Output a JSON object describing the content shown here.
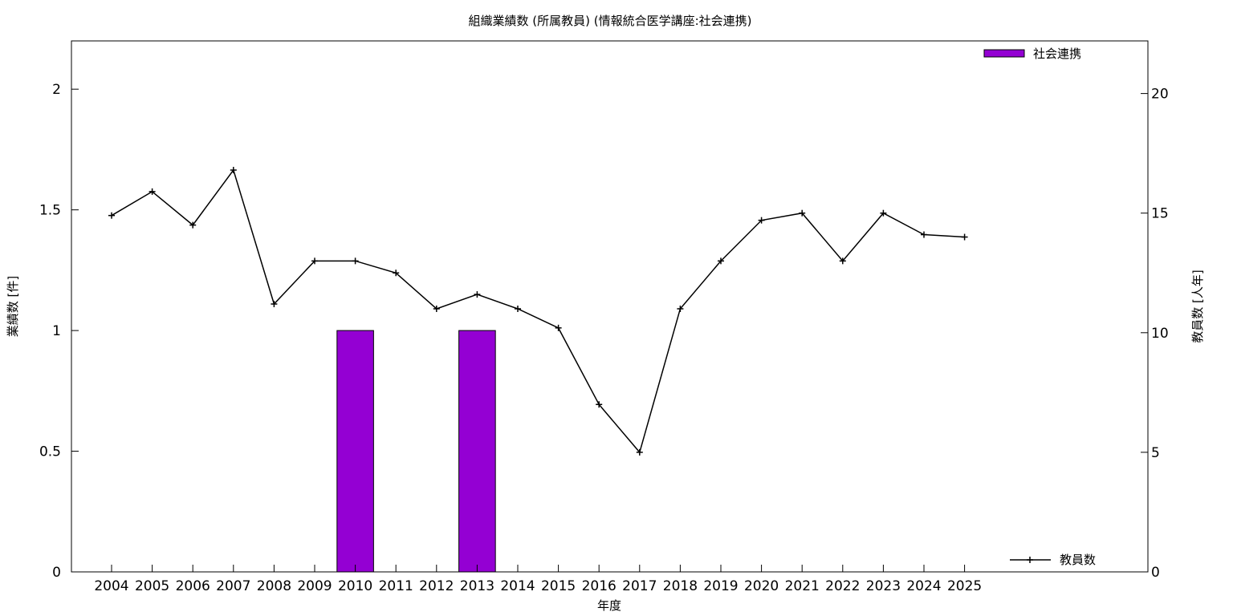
{
  "chart_data": {
    "type": "bar",
    "title": "組織業績数 (所属教員) (情報統合医学講座:社会連携)",
    "xlabel": "年度",
    "ylabel": "業績数 [件]",
    "y2label": "教員数 [人年]",
    "categories": [
      "2004",
      "2005",
      "2006",
      "2007",
      "2008",
      "2009",
      "2010",
      "2011",
      "2012",
      "2013",
      "2014",
      "2015",
      "2016",
      "2017",
      "2018",
      "2019",
      "2020",
      "2021",
      "2022",
      "2023",
      "2024",
      "2025"
    ],
    "ylim": [
      0,
      2.2
    ],
    "y2lim": [
      0,
      22.2
    ],
    "yticks": [
      "0",
      "0.5",
      "1",
      "1.5",
      "2"
    ],
    "y2ticks": [
      "0",
      "5",
      "10",
      "15",
      "20"
    ],
    "grid": false,
    "series": [
      {
        "name": "社会連携",
        "type": "bar",
        "axis": "left",
        "color": "#9400d3",
        "values": [
          0,
          0,
          0,
          0,
          0,
          0,
          1,
          0,
          0,
          1,
          0,
          0,
          0,
          0,
          0,
          0,
          0,
          0,
          0,
          0,
          0,
          0
        ]
      },
      {
        "name": "教員数",
        "type": "line",
        "axis": "right",
        "color": "#000000",
        "values": [
          14.9,
          15.9,
          14.5,
          16.8,
          11.2,
          13.0,
          13.0,
          12.5,
          11.0,
          11.6,
          11.0,
          10.2,
          7.0,
          5.0,
          11.0,
          13.0,
          14.7,
          15.0,
          13.0,
          15.0,
          14.1,
          14.0
        ]
      }
    ],
    "legend": [
      {
        "position": "top-right",
        "series": "社会連携"
      },
      {
        "position": "bottom-right",
        "series": "教員数"
      }
    ]
  }
}
